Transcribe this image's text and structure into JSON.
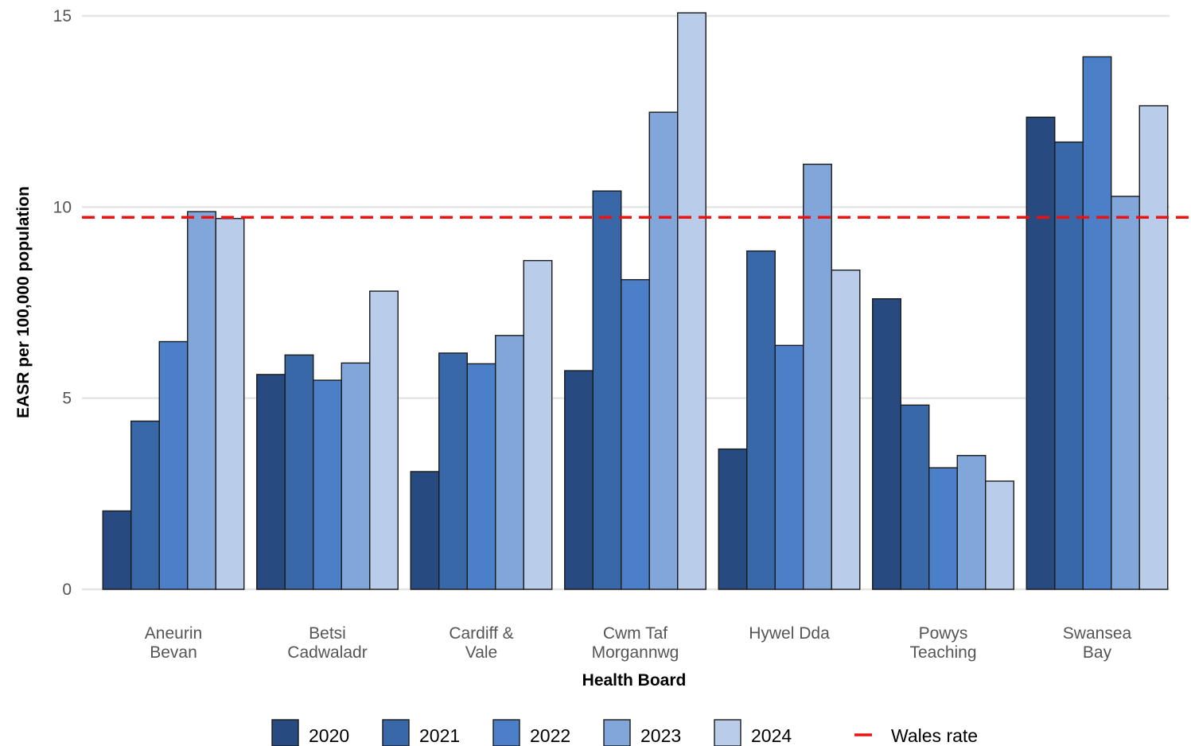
{
  "chart_data": {
    "type": "bar",
    "xlabel": "Health Board",
    "ylabel": "EASR per 100,000 population",
    "ylim": [
      0,
      15
    ],
    "yticks": [
      0,
      5,
      10,
      15
    ],
    "grid": true,
    "legend_position": "bottom",
    "categories": [
      [
        "Aneurin",
        "Bevan"
      ],
      [
        "Betsi",
        "Cadwaladr"
      ],
      [
        "Cardiff &",
        "Vale"
      ],
      [
        "Cwm Taf",
        "Morgannwg"
      ],
      [
        "Hywel Dda"
      ],
      [
        "Powys",
        "Teaching"
      ],
      [
        "Swansea",
        "Bay"
      ]
    ],
    "series": [
      {
        "name": "2020",
        "color": "#274b80",
        "values": [
          2.05,
          5.62,
          3.08,
          5.72,
          3.67,
          7.6,
          12.35
        ]
      },
      {
        "name": "2021",
        "color": "#3868a8",
        "values": [
          4.4,
          6.13,
          6.18,
          10.42,
          8.85,
          4.82,
          11.7
        ]
      },
      {
        "name": "2022",
        "color": "#4b80c8",
        "values": [
          6.48,
          5.47,
          5.9,
          8.1,
          6.38,
          3.18,
          13.93
        ]
      },
      {
        "name": "2023",
        "color": "#80a6da",
        "values": [
          9.88,
          5.92,
          6.64,
          12.48,
          11.12,
          3.5,
          10.28
        ]
      },
      {
        "name": "2024",
        "color": "#b9cdea",
        "values": [
          9.7,
          7.8,
          8.6,
          15.08,
          8.35,
          2.83,
          12.65
        ]
      }
    ],
    "reference_line": {
      "name": "Wales rate",
      "value": 9.73,
      "color": "#ee1111",
      "style": "dashed"
    }
  }
}
